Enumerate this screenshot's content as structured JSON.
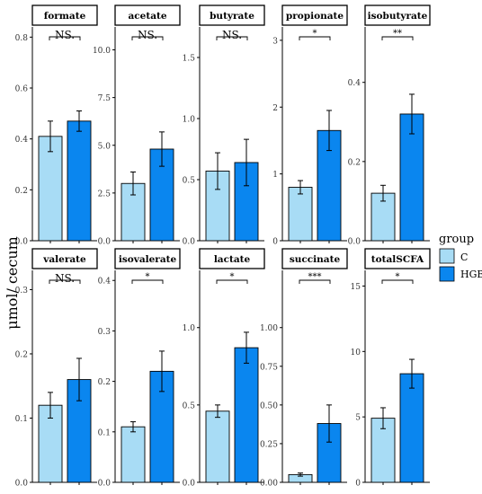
{
  "figure": {
    "ylabel": "μmol/ cecum",
    "legend": {
      "title": "group",
      "items": [
        {
          "label": "C",
          "color": "#a8dcf5"
        },
        {
          "label": "HGB",
          "color": "#0a86ef"
        }
      ]
    }
  },
  "chart_data": [
    {
      "type": "bar",
      "title": "formate",
      "categories": [
        "C",
        "HGB"
      ],
      "values": [
        0.41,
        0.47
      ],
      "errors": [
        0.06,
        0.04
      ],
      "ylim": [
        0,
        0.84
      ],
      "yticks": [
        "0.0",
        "0.2",
        "0.4",
        "0.6",
        "0.8"
      ],
      "ytick_values": [
        0,
        0.2,
        0.4,
        0.6,
        0.8
      ],
      "significance": "NS."
    },
    {
      "type": "bar",
      "title": "acetate",
      "categories": [
        "C",
        "HGB"
      ],
      "values": [
        3.0,
        4.8
      ],
      "errors": [
        0.6,
        0.9
      ],
      "ylim": [
        0,
        11.2
      ],
      "yticks": [
        "0.0",
        "2.5",
        "5.0",
        "7.5",
        "10.0"
      ],
      "ytick_values": [
        0,
        2.5,
        5,
        7.5,
        10
      ],
      "significance": "NS."
    },
    {
      "type": "bar",
      "title": "butyrate",
      "categories": [
        "C",
        "HGB"
      ],
      "values": [
        0.57,
        0.64
      ],
      "errors": [
        0.15,
        0.19
      ],
      "ylim": [
        0,
        1.75
      ],
      "yticks": [
        "0.0",
        "0.5",
        "1.0",
        "1.5"
      ],
      "ytick_values": [
        0,
        0.5,
        1,
        1.5
      ],
      "significance": "NS."
    },
    {
      "type": "bar",
      "title": "propionate",
      "categories": [
        "C",
        "HGB"
      ],
      "values": [
        0.8,
        1.65
      ],
      "errors": [
        0.1,
        0.3
      ],
      "ylim": [
        0,
        3.2
      ],
      "yticks": [
        "0",
        "1",
        "2",
        "3"
      ],
      "ytick_values": [
        0,
        1,
        2,
        3
      ],
      "significance": "*"
    },
    {
      "type": "bar",
      "title": "isobutyrate",
      "categories": [
        "C",
        "HGB"
      ],
      "values": [
        0.12,
        0.32
      ],
      "errors": [
        0.02,
        0.05
      ],
      "ylim": [
        0,
        0.54
      ],
      "yticks": [
        "0.0",
        "0.2",
        "0.4"
      ],
      "ytick_values": [
        0,
        0.2,
        0.4
      ],
      "significance": "**"
    },
    {
      "type": "bar",
      "title": "valerate",
      "categories": [
        "C",
        "HGB"
      ],
      "values": [
        0.12,
        0.16
      ],
      "errors": [
        0.02,
        0.033
      ],
      "ylim": [
        0,
        0.33
      ],
      "yticks": [
        "0.0",
        "0.1",
        "0.2",
        "0.3"
      ],
      "ytick_values": [
        0,
        0.1,
        0.2,
        0.3
      ],
      "significance": "NS."
    },
    {
      "type": "bar",
      "title": "isovalerate",
      "categories": [
        "C",
        "HGB"
      ],
      "values": [
        0.11,
        0.22
      ],
      "errors": [
        0.01,
        0.04
      ],
      "ylim": [
        0,
        0.42
      ],
      "yticks": [
        "0.0",
        "0.1",
        "0.2",
        "0.3",
        "0.4"
      ],
      "ytick_values": [
        0,
        0.1,
        0.2,
        0.3,
        0.4
      ],
      "significance": "*"
    },
    {
      "type": "bar",
      "title": "lactate",
      "categories": [
        "C",
        "HGB"
      ],
      "values": [
        0.46,
        0.87
      ],
      "errors": [
        0.04,
        0.1
      ],
      "ylim": [
        0,
        1.37
      ],
      "yticks": [
        "0.0",
        "0.5",
        "1.0"
      ],
      "ytick_values": [
        0,
        0.5,
        1
      ],
      "significance": "*"
    },
    {
      "type": "bar",
      "title": "succinate",
      "categories": [
        "C",
        "HGB"
      ],
      "values": [
        0.05,
        0.38
      ],
      "errors": [
        0.01,
        0.12
      ],
      "ylim": [
        0,
        1.37
      ],
      "yticks": [
        "0.00",
        "0.25",
        "0.50",
        "0.75",
        "1.00"
      ],
      "ytick_values": [
        0,
        0.25,
        0.5,
        0.75,
        1
      ],
      "significance": "***"
    },
    {
      "type": "bar",
      "title": "totalSCFA",
      "categories": [
        "C",
        "HGB"
      ],
      "values": [
        4.9,
        8.3
      ],
      "errors": [
        0.8,
        1.1
      ],
      "ylim": [
        0,
        16.2
      ],
      "yticks": [
        "0",
        "5",
        "10",
        "15"
      ],
      "ytick_values": [
        0,
        5,
        10,
        15
      ],
      "significance": "*"
    }
  ]
}
